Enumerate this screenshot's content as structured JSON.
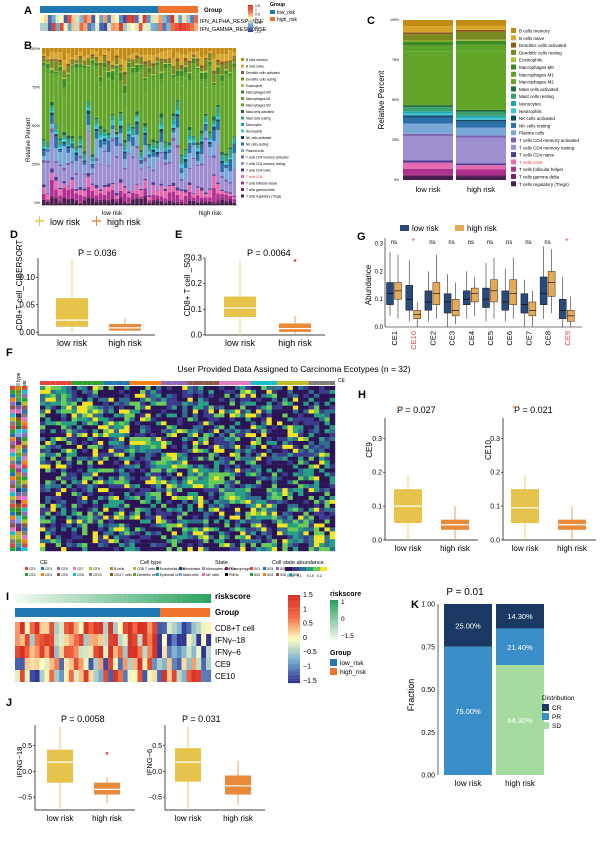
{
  "panels": {
    "A": {
      "letter": "A",
      "rows": [
        "IFN_ALPHA_RESPONSE",
        "IFN_GAMMA_RESPONSE"
      ],
      "group_title": "Group",
      "legend": [
        "low_risk",
        "high_risk"
      ],
      "scale_ticks": [
        "1.5",
        "1",
        "0.5",
        "0",
        "-0.5",
        "-1",
        "-1.5"
      ]
    },
    "B": {
      "letter": "B",
      "ylabel": "Relative Percent",
      "yticks": [
        "100%",
        "75%",
        "50%",
        "25%",
        "0%"
      ],
      "groups": [
        "low risk",
        "high risk"
      ]
    },
    "C": {
      "letter": "C",
      "ylabel": "Relative Percent",
      "yticks": [
        "100%",
        "75%",
        "50%",
        "25%",
        "0%"
      ],
      "groups": [
        "low risk",
        "high risk"
      ]
    },
    "cell_types": [
      "B cells memory",
      "B cells naive",
      "Dendritic cells activated",
      "Dendritic cells resting",
      "Eosinophils",
      "Macrophages M0",
      "Macrophages M1",
      "Macrophages M2",
      "Mast cells activated",
      "Mast cells resting",
      "Monocytes",
      "Neutrophils",
      "NK cells activated",
      "NK cells resting",
      "Plasma cells",
      "T cells CD4 memory activated",
      "T cells CD4 memory resting",
      "T cells CD4 naive",
      "T cells CD8",
      "T cells follicular helper",
      "T cells gamma delta",
      "T cells regulatory (Tregs)"
    ],
    "D": {
      "letter": "D",
      "legend": [
        "low risk",
        "high risk"
      ],
      "pvalue": "P = 0.036",
      "ylabel": "CD8+T cell_CIBERSORT",
      "yticks": [
        "0.10",
        "0.05",
        "0.00"
      ],
      "xlabels": [
        "low risk",
        "high risk"
      ]
    },
    "E": {
      "letter": "E",
      "pvalue": "P = 0.0064",
      "ylabel": "CD8+ T cell _S03",
      "yticks": [
        "0.3",
        "0.2",
        "0.1",
        "0.0"
      ],
      "xlabels": [
        "low risk",
        "high risk"
      ]
    },
    "G": {
      "letter": "G",
      "legend": [
        "low risk",
        "high risk"
      ],
      "ylabel": "Abundance",
      "yticks": [
        "0.3",
        "0.2",
        "0.1",
        "0.0"
      ],
      "categories": [
        "CE1",
        "CE10",
        "CE2",
        "CE3",
        "CE4",
        "CE5",
        "CE6",
        "CE7",
        "CE8",
        "CE9"
      ],
      "sig": [
        "ns",
        "*",
        "ns",
        "ns",
        "ns",
        "ns",
        "ns",
        "ns",
        "ns",
        "*"
      ]
    },
    "F": {
      "letter": "F",
      "title": "User Provided Data Assigned to Carcinoma Ecotypes (n = 32)",
      "side_labels": [
        "CE",
        "Cell type",
        "State"
      ],
      "top_label": "CE",
      "legend_titles": [
        "CE",
        "Cell type",
        "State",
        "Cell state abundance"
      ],
      "ce_items": [
        "CE1",
        "CE2",
        "CE3",
        "CE4",
        "CE5",
        "CE6",
        "CE7",
        "CE8",
        "CE9",
        "CE10"
      ],
      "celltype_items": [
        "B cells",
        "CD4 T cells",
        "CD8 T cells",
        "Dendritic cells",
        "Endothelial cells",
        "Epithelial cells",
        "Fibroblasts",
        "Mast cells",
        "Monocytes and Macrophages",
        "NK cells",
        "PCs",
        "PMNs"
      ],
      "state_items": [
        "S01",
        "S02",
        "S03",
        "S04",
        "S05",
        "S06",
        "S07",
        "S08",
        "S09"
      ],
      "abundance_ticks": [
        "0.05",
        "0.1",
        "0.15",
        "0.2"
      ]
    },
    "H": {
      "letter": "H",
      "left": {
        "pvalue": "P = 0.027",
        "ylabel": "CE9",
        "yticks": [
          "0.3",
          "0.2",
          "0.1",
          "0.0"
        ]
      },
      "right": {
        "pvalue": "P = 0.021",
        "ylabel": "CE10",
        "yticks": [
          "0.3",
          "0.2",
          "0.1",
          "0.0"
        ]
      },
      "xlabels": [
        "low risk",
        "high risk"
      ]
    },
    "I": {
      "letter": "I",
      "top_labels": [
        "riskscore",
        "Group"
      ],
      "rows": [
        "CD8+T cell",
        "IFNγ–18",
        "IFNγ–6",
        "CE9",
        "CE10"
      ],
      "scale_ticks": [
        "1.5",
        "1",
        "0.5",
        "0",
        "−0.5",
        "−1",
        "−1.5"
      ],
      "legend_title_riskscore": "riskscore",
      "riskscore_ticks": [
        "1",
        "0",
        "−1.5"
      ],
      "legend_title_group": "Group",
      "group_items": [
        "low_risk",
        "high_risk"
      ]
    },
    "J": {
      "letter": "J",
      "left": {
        "pvalue": "P = 0.0058",
        "ylabel": "IFNG−18",
        "yticks": [
          "0.5",
          "0.0",
          "−0.5"
        ]
      },
      "right": {
        "pvalue": "P = 0.031",
        "ylabel": "IFNG−6",
        "yticks": [
          "0.5",
          "0.0",
          "−0.5"
        ]
      },
      "xlabels": [
        "low risk",
        "high risk"
      ]
    },
    "K": {
      "letter": "K",
      "pvalue": "P = 0.01",
      "ylabel": "Fraction",
      "yticks": [
        "1.00",
        "0.75",
        "0.50",
        "0.25",
        "0.00"
      ],
      "xlabels": [
        "low risk",
        "high risk"
      ],
      "legend_title": "Distribution",
      "legend": [
        "CR",
        "PR",
        "SD"
      ],
      "low_labels": [
        "25.00%",
        "75.00%"
      ],
      "high_labels": [
        "14.30%",
        "21.40%",
        "64.30%"
      ]
    }
  },
  "colors": {
    "low": "#2a4a7c",
    "high": "#e88a3a",
    "box_low": "#e6c34a",
    "box_high": "#e88a3a",
    "group_low": "#1f77b4",
    "group_high": "#f0742d"
  },
  "chart_data": [
    {
      "type": "bar",
      "title": "",
      "xlabel": "",
      "ylabel": "Fraction",
      "categories": [
        "low risk",
        "high risk"
      ],
      "series": [
        {
          "name": "CR",
          "values": [
            0.25,
            0.143
          ]
        },
        {
          "name": "PR",
          "values": [
            0.75,
            0.214
          ]
        },
        {
          "name": "SD",
          "values": [
            0.0,
            0.643
          ]
        }
      ],
      "ylim": [
        0,
        1
      ]
    },
    {
      "type": "bar",
      "title": "",
      "ylabel": "Relative Percent",
      "categories": [
        "low risk",
        "high risk"
      ],
      "series_names_ref": "panels.cell_types",
      "values_low": [
        3,
        3,
        1,
        3,
        0.5,
        2,
        3,
        26,
        1,
        2,
        1,
        1,
        1,
        3,
        5,
        1,
        12,
        1,
        3,
        3,
        0.5,
        2
      ],
      "values_high": [
        3,
        2,
        1,
        4,
        0.5,
        2,
        3,
        30,
        1,
        2,
        1,
        1,
        1,
        3,
        4,
        1,
        13,
        1,
        2,
        3,
        0.5,
        2
      ],
      "ylim": [
        0,
        1
      ]
    }
  ]
}
